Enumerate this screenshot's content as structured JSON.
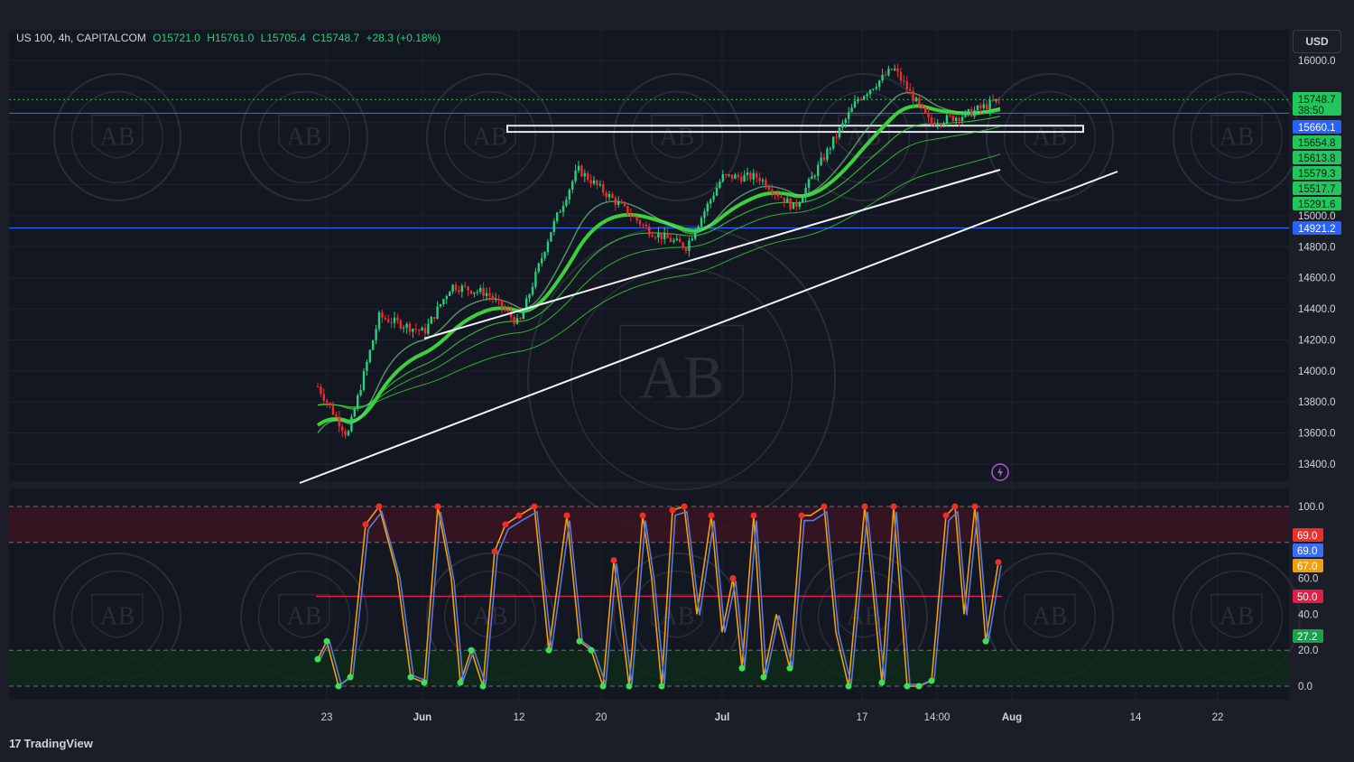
{
  "legend": {
    "symbol": "US 100, 4h, CAPITALCOM",
    "open_label": "O",
    "open": "15721.0",
    "high_label": "H",
    "high": "15761.0",
    "low_label": "L",
    "low": "15705.4",
    "close_label": "C",
    "close": "15748.7",
    "change": "+28.3 (+0.18%)"
  },
  "currency": "USD",
  "brand": "TradingView",
  "watermark_text": "AB",
  "price_scale": {
    "min": 13200,
    "max": 16000,
    "ticks": [
      "16000.0",
      "14800.0",
      "14600.0",
      "14400.0",
      "14200.0",
      "14000.0",
      "13800.0",
      "13600.0",
      "13400.0"
    ]
  },
  "price_tags": [
    {
      "value": 15748.7,
      "label": "15748.7",
      "sub": "38:50",
      "color": "#22c55e"
    },
    {
      "value": 15660.1,
      "label": "15660.1",
      "color": "#2962ff"
    },
    {
      "value": 15654.8,
      "label": "15654.8",
      "color": "#22c55e"
    },
    {
      "value": 15613.8,
      "label": "15613.8",
      "color": "#22c55e"
    },
    {
      "value": 15579.3,
      "label": "15579.3",
      "color": "#22c55e"
    },
    {
      "value": 15517.7,
      "label": "15517.7",
      "color": "#22c55e"
    },
    {
      "value": 15291.6,
      "label": "15291.6",
      "color": "#22c55e"
    },
    {
      "value": 15000.0,
      "label": "15000.0",
      "color": "#1b1d27"
    },
    {
      "value": 14921.2,
      "label": "14921.2",
      "color": "#2962ff"
    }
  ],
  "osc_scale": {
    "ticks": [
      "100.0",
      "60.0",
      "40.0",
      "20.0",
      "0.0"
    ]
  },
  "osc_tags": [
    {
      "value": 69,
      "label": "69.0",
      "color": "#ef2d2d"
    },
    {
      "value": 69,
      "label": "69.0",
      "color": "#3a6df0"
    },
    {
      "value": 67,
      "label": "67.0",
      "color": "#f59e0b"
    },
    {
      "value": 50,
      "label": "50.0",
      "color": "#e11d48"
    },
    {
      "value": 27.2,
      "label": "27.2",
      "color": "#16a34a"
    }
  ],
  "time_axis": [
    "23",
    "Jun",
    "12",
    "20",
    "Jul",
    "17",
    "14:00",
    "Aug",
    "14",
    "22"
  ],
  "time_axis_bold": [
    "Jun",
    "Jul",
    "Aug"
  ],
  "colors": {
    "up": "#26d07c",
    "down": "#ef2d2d",
    "ema": "#3bd13b",
    "osc_k": "#f59e0b",
    "osc_d": "#5b7bd6"
  },
  "chart_data": {
    "type": "candlestick",
    "symbol": "US 100",
    "interval": "4h",
    "ylim": [
      13200,
      16000
    ],
    "horizontal_levels": [
      15660.1,
      14921.2
    ],
    "resistance_zone": [
      15540,
      15580
    ],
    "closes": [
      {
        "t": "23",
        "value": 13850
      },
      {
        "t": "25",
        "value": 13550
      },
      {
        "t": "Jun",
        "value": 14350
      },
      {
        "t": "5",
        "value": 14500
      },
      {
        "t": "8",
        "value": 14300
      },
      {
        "t": "12",
        "value": 14900
      },
      {
        "t": "16",
        "value": 15350
      },
      {
        "t": "20",
        "value": 15200
      },
      {
        "t": "23",
        "value": 14950
      },
      {
        "t": "26",
        "value": 14700
      },
      {
        "t": "Jul",
        "value": 15300
      },
      {
        "t": "5",
        "value": 15200
      },
      {
        "t": "10",
        "value": 15050
      },
      {
        "t": "14",
        "value": 15550
      },
      {
        "t": "17",
        "value": 15850
      },
      {
        "t": "19",
        "value": 15900
      },
      {
        "t": "21",
        "value": 15550
      },
      {
        "t": "14:00",
        "value": 15650
      },
      {
        "t": "27",
        "value": 15700
      },
      {
        "t": "29",
        "value": 15748.7
      }
    ],
    "oscillator": {
      "type": "stochastic RSI",
      "ylim": [
        0,
        100
      ],
      "bands": [
        20,
        80
      ],
      "midline": 50,
      "last_k": 69,
      "last_d": 67
    }
  }
}
